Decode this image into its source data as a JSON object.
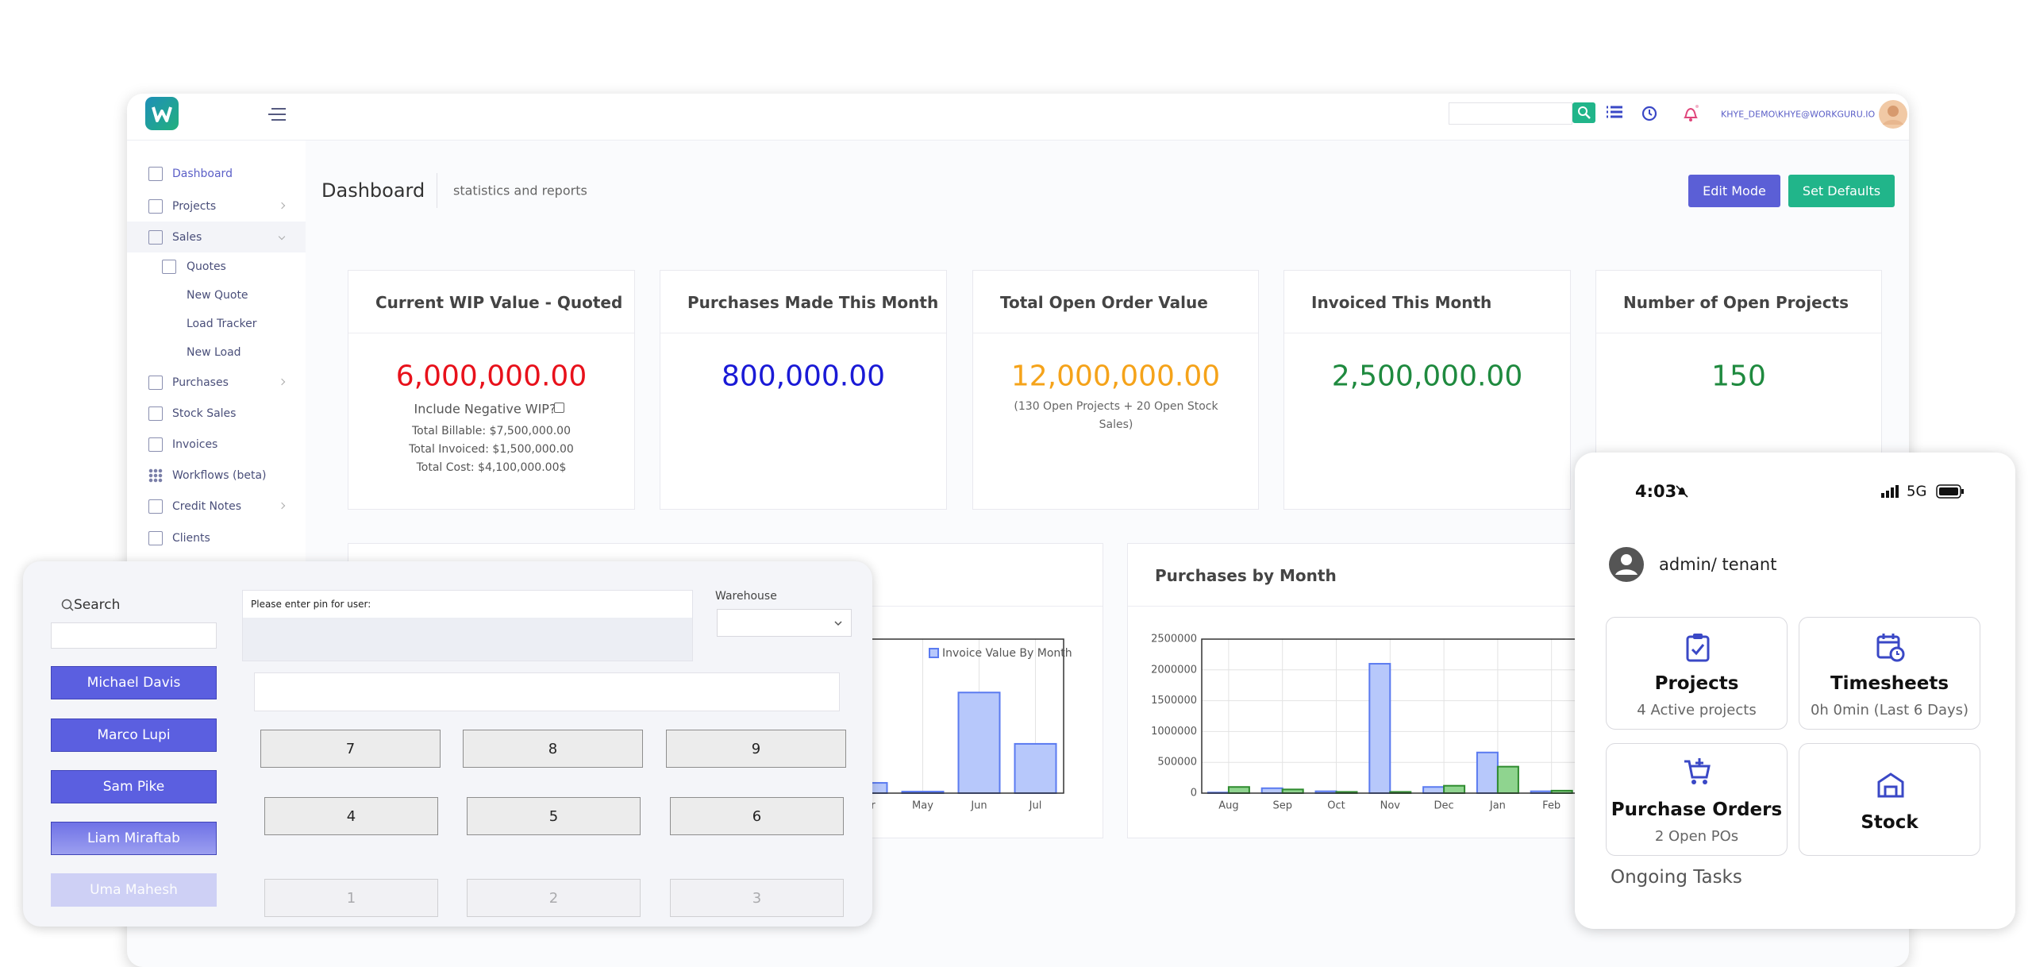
{
  "header": {
    "user": "KHYE_DEMO\\KHYE@WORKGURU.IO"
  },
  "sidebar": [
    "Dashboard",
    "Projects",
    "Sales",
    "Quotes",
    "New Quote",
    "Load Tracker",
    "New Load",
    "Purchases",
    "Stock Sales",
    "Invoices",
    "Workflows (beta)",
    "Credit Notes",
    "Clients"
  ],
  "page": {
    "title": "Dashboard",
    "subtitle": "statistics and reports",
    "buttons": [
      "Edit Mode",
      "Set Defaults"
    ]
  },
  "cards": [
    {
      "title": "Current WIP Value - Quoted",
      "value": "6,000,000.00",
      "color": "#e8111b",
      "lines": [
        "Include Negative WIP?",
        "Total Billable: $7,500,000.00",
        "Total Invoiced: $1,500,000.00",
        "Total Cost: $4,100,000.00$"
      ]
    },
    {
      "title": "Purchases Made This Month",
      "value": "800,000.00",
      "color": "#1a1ad6"
    },
    {
      "title": "Total Open Order Value",
      "value": "12,000,000.00",
      "color": "#f5a31a",
      "note": "(130 Open Projects + 20 Open Stock Sales)"
    },
    {
      "title": "Invoiced This Month",
      "value": "2,500,000.00",
      "color": "#1f8a3f"
    },
    {
      "title": "Number of Open Projects",
      "value": "150",
      "color": "#1f8a3f"
    }
  ],
  "chart_data": [
    {
      "type": "bar",
      "categories": [
        "Apr",
        "May",
        "Jun",
        "Jul"
      ],
      "ylim": [
        0,
        3000000
      ],
      "grid": true,
      "series": [
        {
          "name": "Invoice Value By Month",
          "color": "#b7c8fb",
          "edge_color": "#5b7bf0",
          "values": [
            200000,
            30000,
            1960000,
            960000
          ]
        }
      ]
    },
    {
      "type": "bar",
      "title": "Purchases by Month",
      "categories": [
        "Aug",
        "Sep",
        "Oct",
        "Nov",
        "Dec",
        "Jan",
        "Feb"
      ],
      "ylim": [
        0,
        2500000
      ],
      "yticks": [
        0,
        500000,
        1000000,
        1500000,
        2000000,
        2500000
      ],
      "grid": true,
      "series": [
        {
          "color": "#b7c8fb",
          "edge_color": "#5b7bf0",
          "values": [
            10000,
            80000,
            30000,
            2100000,
            100000,
            660000,
            30000
          ]
        },
        {
          "color": "#8fd48f",
          "edge_color": "#2e8b2e",
          "values": [
            100000,
            60000,
            20000,
            20000,
            120000,
            430000,
            40000
          ]
        }
      ]
    }
  ],
  "pos": {
    "search": "Search",
    "employees": [
      "Michael Davis",
      "Marco Lupi",
      "Sam Pike",
      "Liam Miraftab",
      "Uma Mahesh"
    ],
    "pin_prompt": "Please enter pin for user:",
    "warehouse": "Warehouse",
    "keys": [
      "7",
      "8",
      "9",
      "4",
      "5",
      "6",
      "1",
      "2",
      "3"
    ]
  },
  "mobile": {
    "time": "4:03",
    "network": "5G",
    "user": "admin/ tenant",
    "tiles": [
      {
        "title": "Projects",
        "subtitle": "4  Active projects"
      },
      {
        "title": "Timesheets",
        "subtitle": "0h 0min  (Last 6 Days)"
      },
      {
        "title": "Purchase Orders",
        "subtitle": "2  Open POs"
      },
      {
        "title": "Stock"
      }
    ],
    "section": "Ongoing Tasks"
  }
}
